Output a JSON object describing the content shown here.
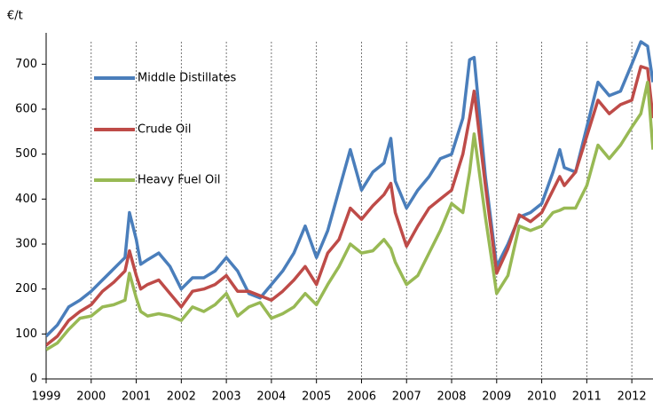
{
  "chart_data": {
    "type": "line",
    "y_axis_label": "€/t",
    "x": [
      1999,
      1999.25,
      1999.5,
      1999.75,
      2000,
      2000.25,
      2000.5,
      2000.75,
      2000.85,
      2001,
      2001.1,
      2001.25,
      2001.5,
      2001.75,
      2002,
      2002.25,
      2002.5,
      2002.75,
      2003,
      2003.25,
      2003.5,
      2003.75,
      2004,
      2004.25,
      2004.5,
      2004.75,
      2005,
      2005.25,
      2005.5,
      2005.75,
      2006,
      2006.25,
      2006.5,
      2006.65,
      2006.75,
      2007,
      2007.25,
      2007.5,
      2007.75,
      2008,
      2008.25,
      2008.4,
      2008.5,
      2008.75,
      2009,
      2009.25,
      2009.5,
      2009.75,
      2010,
      2010.25,
      2010.4,
      2010.5,
      2010.75,
      2011,
      2011.25,
      2011.5,
      2011.75,
      2012,
      2012.2,
      2012.35,
      2012.47
    ],
    "series": [
      {
        "name": "Middle Distillates",
        "color": "#4a7ebb",
        "values": [
          95,
          120,
          160,
          175,
          195,
          220,
          245,
          270,
          370,
          310,
          255,
          265,
          280,
          250,
          200,
          225,
          225,
          240,
          270,
          240,
          190,
          180,
          210,
          240,
          280,
          340,
          270,
          330,
          420,
          510,
          420,
          460,
          480,
          535,
          440,
          380,
          420,
          450,
          490,
          500,
          580,
          710,
          715,
          450,
          250,
          300,
          360,
          370,
          390,
          460,
          510,
          470,
          460,
          560,
          660,
          630,
          640,
          700,
          750,
          740,
          660
        ]
      },
      {
        "name": "Crude Oil",
        "color": "#be4b48",
        "values": [
          75,
          95,
          130,
          150,
          165,
          195,
          215,
          240,
          285,
          230,
          200,
          210,
          220,
          190,
          160,
          195,
          200,
          210,
          230,
          195,
          195,
          185,
          175,
          195,
          220,
          250,
          210,
          280,
          310,
          380,
          355,
          385,
          410,
          435,
          370,
          295,
          340,
          380,
          400,
          420,
          500,
          580,
          640,
          430,
          235,
          290,
          365,
          350,
          370,
          420,
          450,
          430,
          460,
          540,
          620,
          590,
          610,
          620,
          695,
          690,
          580
        ]
      },
      {
        "name": "Heavy Fuel Oil",
        "color": "#98b954",
        "values": [
          65,
          80,
          110,
          135,
          140,
          160,
          165,
          175,
          235,
          180,
          150,
          140,
          145,
          140,
          130,
          160,
          150,
          165,
          190,
          140,
          160,
          170,
          135,
          145,
          160,
          190,
          165,
          210,
          250,
          300,
          280,
          285,
          310,
          290,
          260,
          210,
          230,
          280,
          330,
          390,
          370,
          460,
          545,
          360,
          190,
          230,
          340,
          330,
          340,
          370,
          375,
          380,
          380,
          430,
          520,
          490,
          520,
          560,
          590,
          660,
          510
        ]
      }
    ],
    "xlim": [
      1999,
      2012.47
    ],
    "xticks": [
      1999,
      2000,
      2001,
      2002,
      2003,
      2004,
      2005,
      2006,
      2007,
      2008,
      2009,
      2010,
      2011,
      2012
    ],
    "ylim": [
      0,
      750
    ],
    "yticks": [
      0,
      100,
      200,
      300,
      400,
      500,
      600,
      700
    ],
    "grid": "x"
  }
}
